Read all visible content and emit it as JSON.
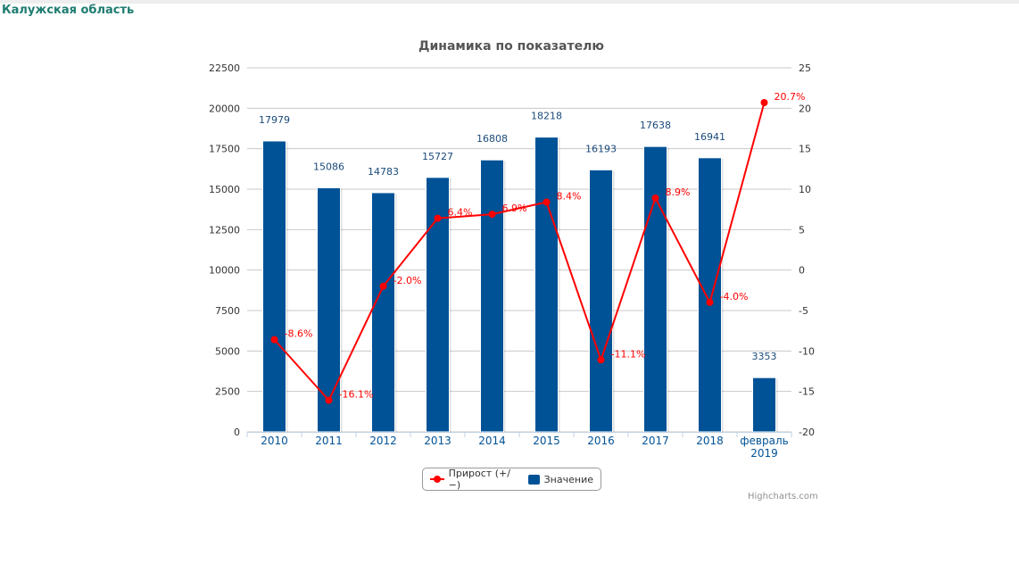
{
  "page": {
    "region_title": "Калужская область",
    "credits": "Highcharts.com"
  },
  "chart_data": {
    "type": "bar",
    "title": "Динамика по показателю",
    "categories": [
      "2010",
      "2011",
      "2012",
      "2013",
      "2014",
      "2015",
      "2016",
      "2017",
      "2018",
      "февраль 2019"
    ],
    "series": [
      {
        "name": "Значение",
        "type": "bar",
        "axis": "left",
        "color": "#005296",
        "values": [
          17979,
          15086,
          14783,
          15727,
          16808,
          18218,
          16193,
          17638,
          16941,
          3353
        ],
        "labels": [
          "17979",
          "15086",
          "14783",
          "15727",
          "16808",
          "18218",
          "16193",
          "17638",
          "16941",
          "3353"
        ]
      },
      {
        "name": "Прирост (+/−)",
        "type": "line",
        "axis": "right",
        "color": "#ff0000",
        "values": [
          -8.6,
          -16.1,
          -2.0,
          6.4,
          6.9,
          8.4,
          -11.1,
          8.9,
          -4.0,
          20.7
        ],
        "labels": [
          "-8.6%",
          "-16.1%",
          "-2.0%",
          "6.4%",
          "6.9%",
          "8.4%",
          "-11.1%",
          "8.9%",
          "-4.0%",
          "20.7%"
        ]
      }
    ],
    "y_left": {
      "min": 0,
      "max": 22500,
      "ticks": [
        "0",
        "2500",
        "5000",
        "7500",
        "10000",
        "12500",
        "15000",
        "17500",
        "20000",
        "22500"
      ]
    },
    "y_right": {
      "min": -20,
      "max": 25,
      "ticks": [
        "-20",
        "-15",
        "-10",
        "-5",
        "0",
        "5",
        "10",
        "15",
        "20",
        "25"
      ]
    },
    "grid": true,
    "legend_position": "bottom-center"
  }
}
